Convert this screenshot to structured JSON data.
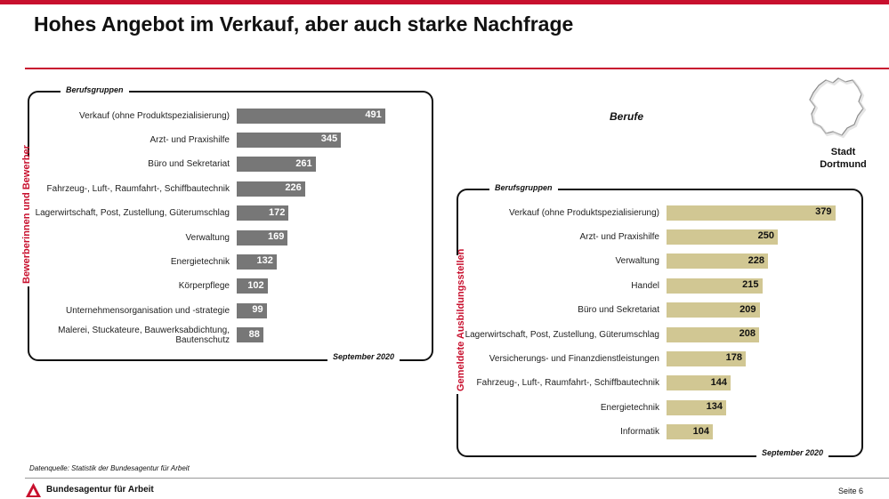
{
  "slide": {
    "title": "Hohes Angebot im Verkauf, aber auch starke Nachfrage",
    "subtitle": "Berufe",
    "region": "Stadt Dortmund",
    "source": "Datenquelle: Statistik der Bundesagentur für Arbeit",
    "agency": "Bundesagentur für Arbeit",
    "page": "Seite 6"
  },
  "colors": {
    "accent": "#c8102e",
    "bar_applicants": "#777777",
    "bar_positions": "#d1c793"
  },
  "icons": [
    "city-map-icon",
    "agency-logo-icon"
  ],
  "chart_data": [
    {
      "type": "bar",
      "orientation": "horizontal",
      "category_header": "Berufsgruppen",
      "series_label": "Bewerberinnen und Bewerber",
      "date_label": "September 2020",
      "categories": [
        "Verkauf (ohne Produktspezialisierung)",
        "Arzt- und Praxishilfe",
        "Büro und Sekretariat",
        "Fahrzeug-, Luft-, Raumfahrt-, Schiffbautechnik",
        "Lagerwirtschaft, Post, Zustellung, Güterumschlag",
        "Verwaltung",
        "Energietechnik",
        "Körperpflege",
        "Unternehmensorganisation und -strategie",
        "Malerei, Stuckateure, Bauwerksabdichtung, Bautenschutz"
      ],
      "values": [
        491,
        345,
        261,
        226,
        172,
        169,
        132,
        102,
        99,
        88
      ]
    },
    {
      "type": "bar",
      "orientation": "horizontal",
      "category_header": "Berufsgruppen",
      "series_label": "Gemeldete Ausbildungsstellen",
      "date_label": "September 2020",
      "categories": [
        "Verkauf (ohne Produktspezialisierung)",
        "Arzt- und Praxishilfe",
        "Verwaltung",
        "Handel",
        "Büro und Sekretariat",
        "Lagerwirtschaft, Post, Zustellung, Güterumschlag",
        "Versicherungs- und Finanzdienstleistungen",
        "Fahrzeug-, Luft-, Raumfahrt-, Schiffbautechnik",
        "Energietechnik",
        "Informatik"
      ],
      "values": [
        379,
        250,
        228,
        215,
        209,
        208,
        178,
        144,
        134,
        104
      ]
    }
  ]
}
